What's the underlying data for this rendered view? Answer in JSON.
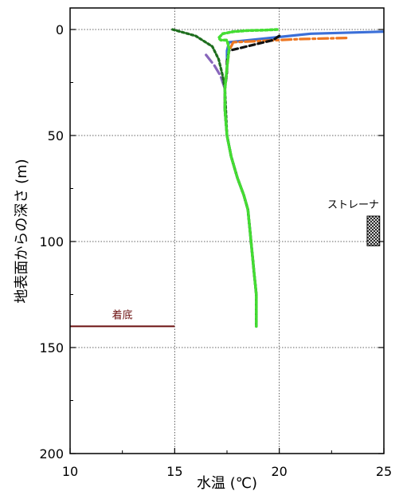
{
  "chart_data": {
    "type": "line",
    "xlabel": "水温 (℃)",
    "ylabel": "地表面からの深さ (m)",
    "xlim": [
      10,
      25
    ],
    "ylim": [
      0,
      200
    ],
    "y_inverted": true,
    "x_ticks": [
      10,
      15,
      20,
      25
    ],
    "y_ticks": [
      0,
      50,
      100,
      150,
      200
    ],
    "x_tick_labels": [
      "10",
      "15",
      "20",
      "25"
    ],
    "y_tick_labels": [
      "0",
      "50",
      "100",
      "150",
      "200"
    ],
    "grid": true,
    "grid_style": "dotted",
    "series": [
      {
        "color": "#3b6fd8",
        "dash": "solid",
        "x": [
          25.0,
          21.5,
          17.6,
          17.5,
          17.5,
          17.4,
          17.4,
          17.5,
          17.7,
          18.0,
          18.3,
          18.5,
          18.6,
          18.7,
          18.8,
          18.9,
          18.9
        ],
        "y": [
          1,
          2,
          6,
          10,
          18,
          28,
          38,
          50,
          60,
          70,
          78,
          85,
          95,
          105,
          115,
          125,
          140
        ]
      },
      {
        "color": "#ee7722",
        "dash": "dashdot",
        "x": [
          23.2,
          21.0,
          17.8,
          17.6,
          17.5,
          17.4,
          17.4,
          17.5,
          17.7,
          18.0,
          18.3,
          18.5,
          18.6,
          18.7,
          18.8,
          18.9,
          18.9
        ],
        "y": [
          4,
          4.5,
          6,
          10,
          18,
          28,
          38,
          50,
          60,
          70,
          78,
          85,
          95,
          105,
          115,
          125,
          140
        ]
      },
      {
        "color": "#111111",
        "dash": "dashed",
        "x": [
          20.0,
          19.7,
          17.6,
          17.5,
          17.5,
          17.4,
          17.4,
          17.5,
          17.7,
          18.0,
          18.3,
          18.5,
          18.6,
          18.7,
          18.8,
          18.9,
          18.9
        ],
        "y": [
          3,
          5,
          10,
          15,
          20,
          28,
          38,
          50,
          60,
          70,
          78,
          85,
          95,
          105,
          115,
          125,
          140
        ]
      },
      {
        "color": "#8866bb",
        "dash": "longdash",
        "x": [
          16.5,
          16.9,
          17.2,
          17.3,
          17.4,
          17.4,
          17.5,
          17.7,
          18.0,
          18.3,
          18.5,
          18.6,
          18.7,
          18.8,
          18.9,
          18.9
        ],
        "y": [
          12,
          17,
          22,
          25,
          28,
          38,
          50,
          60,
          70,
          78,
          85,
          95,
          105,
          115,
          125,
          140
        ]
      },
      {
        "color": "#1e6e1e",
        "dash": "dotted",
        "x": [
          14.9,
          16.0,
          16.8,
          17.1,
          17.3,
          17.4,
          17.5,
          17.7,
          18.0,
          18.3,
          18.5,
          18.6,
          18.7,
          18.8,
          18.9,
          18.9
        ],
        "y": [
          0,
          3,
          8,
          14,
          22,
          28,
          50,
          60,
          70,
          78,
          85,
          95,
          105,
          115,
          125,
          140
        ]
      },
      {
        "color": "#44dd33",
        "dash": "dotted",
        "x": [
          19.9,
          19.3,
          18.5,
          17.8,
          17.3,
          17.1,
          17.2,
          17.4,
          17.5,
          17.6,
          17.5,
          17.4,
          17.4,
          17.5,
          17.7,
          18.0,
          18.3,
          18.5,
          18.6,
          18.7,
          18.8,
          18.9,
          18.9
        ],
        "y": [
          0,
          0.3,
          0.5,
          1,
          2,
          4,
          5,
          5,
          5,
          9,
          18,
          28,
          38,
          50,
          60,
          70,
          78,
          85,
          95,
          105,
          115,
          125,
          140
        ]
      }
    ],
    "annotations": {
      "strainer_label": "ストレーナ",
      "strainer_range": [
        88,
        102
      ],
      "strainer_x": [
        24.2,
        24.8
      ],
      "bottom_label": "着底",
      "bottom_depth": 140,
      "bottom_x": [
        10,
        15
      ],
      "bottom_color": "#6b1010"
    }
  }
}
